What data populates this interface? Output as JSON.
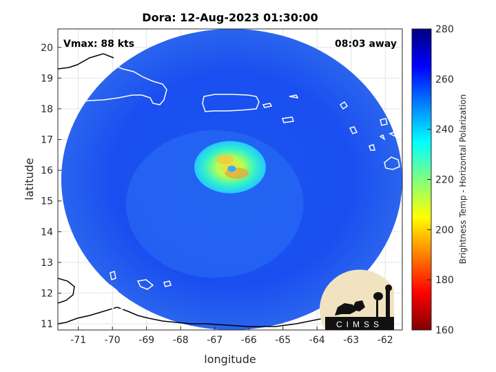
{
  "chart_data": {
    "type": "heatmap",
    "title": "Dora: 12-Aug-2023 01:30:00",
    "xlabel": "longitude",
    "ylabel": "latitude",
    "xlim": [
      -71.6,
      -61.5
    ],
    "ylim": [
      10.8,
      20.6
    ],
    "xticks": [
      -71,
      -70,
      -69,
      -68,
      -67,
      -66,
      -65,
      -64,
      -63,
      -62
    ],
    "yticks": [
      11,
      12,
      13,
      14,
      15,
      16,
      17,
      18,
      19,
      20
    ],
    "grid": true,
    "annotations": {
      "vmax": "Vmax: 88 kts",
      "time_away": "08:03 away"
    },
    "storm_center": {
      "lon": -66.7,
      "lat": 16.1
    },
    "swath_center": {
      "lon": -66.5,
      "lat": 15.7
    },
    "swath_radius_deg": 5.0,
    "colorbar": {
      "label": "Brightness Temp - Horizontal Polarization",
      "range": [
        160,
        280
      ],
      "ticks": [
        160,
        180,
        200,
        220,
        240,
        260,
        280
      ],
      "colors": [
        "#800000",
        "#ff0000",
        "#ff8000",
        "#ffff00",
        "#80ff80",
        "#00ffff",
        "#0080ff",
        "#0000ff",
        "#000080"
      ]
    },
    "logo_text": "CIMSS"
  }
}
